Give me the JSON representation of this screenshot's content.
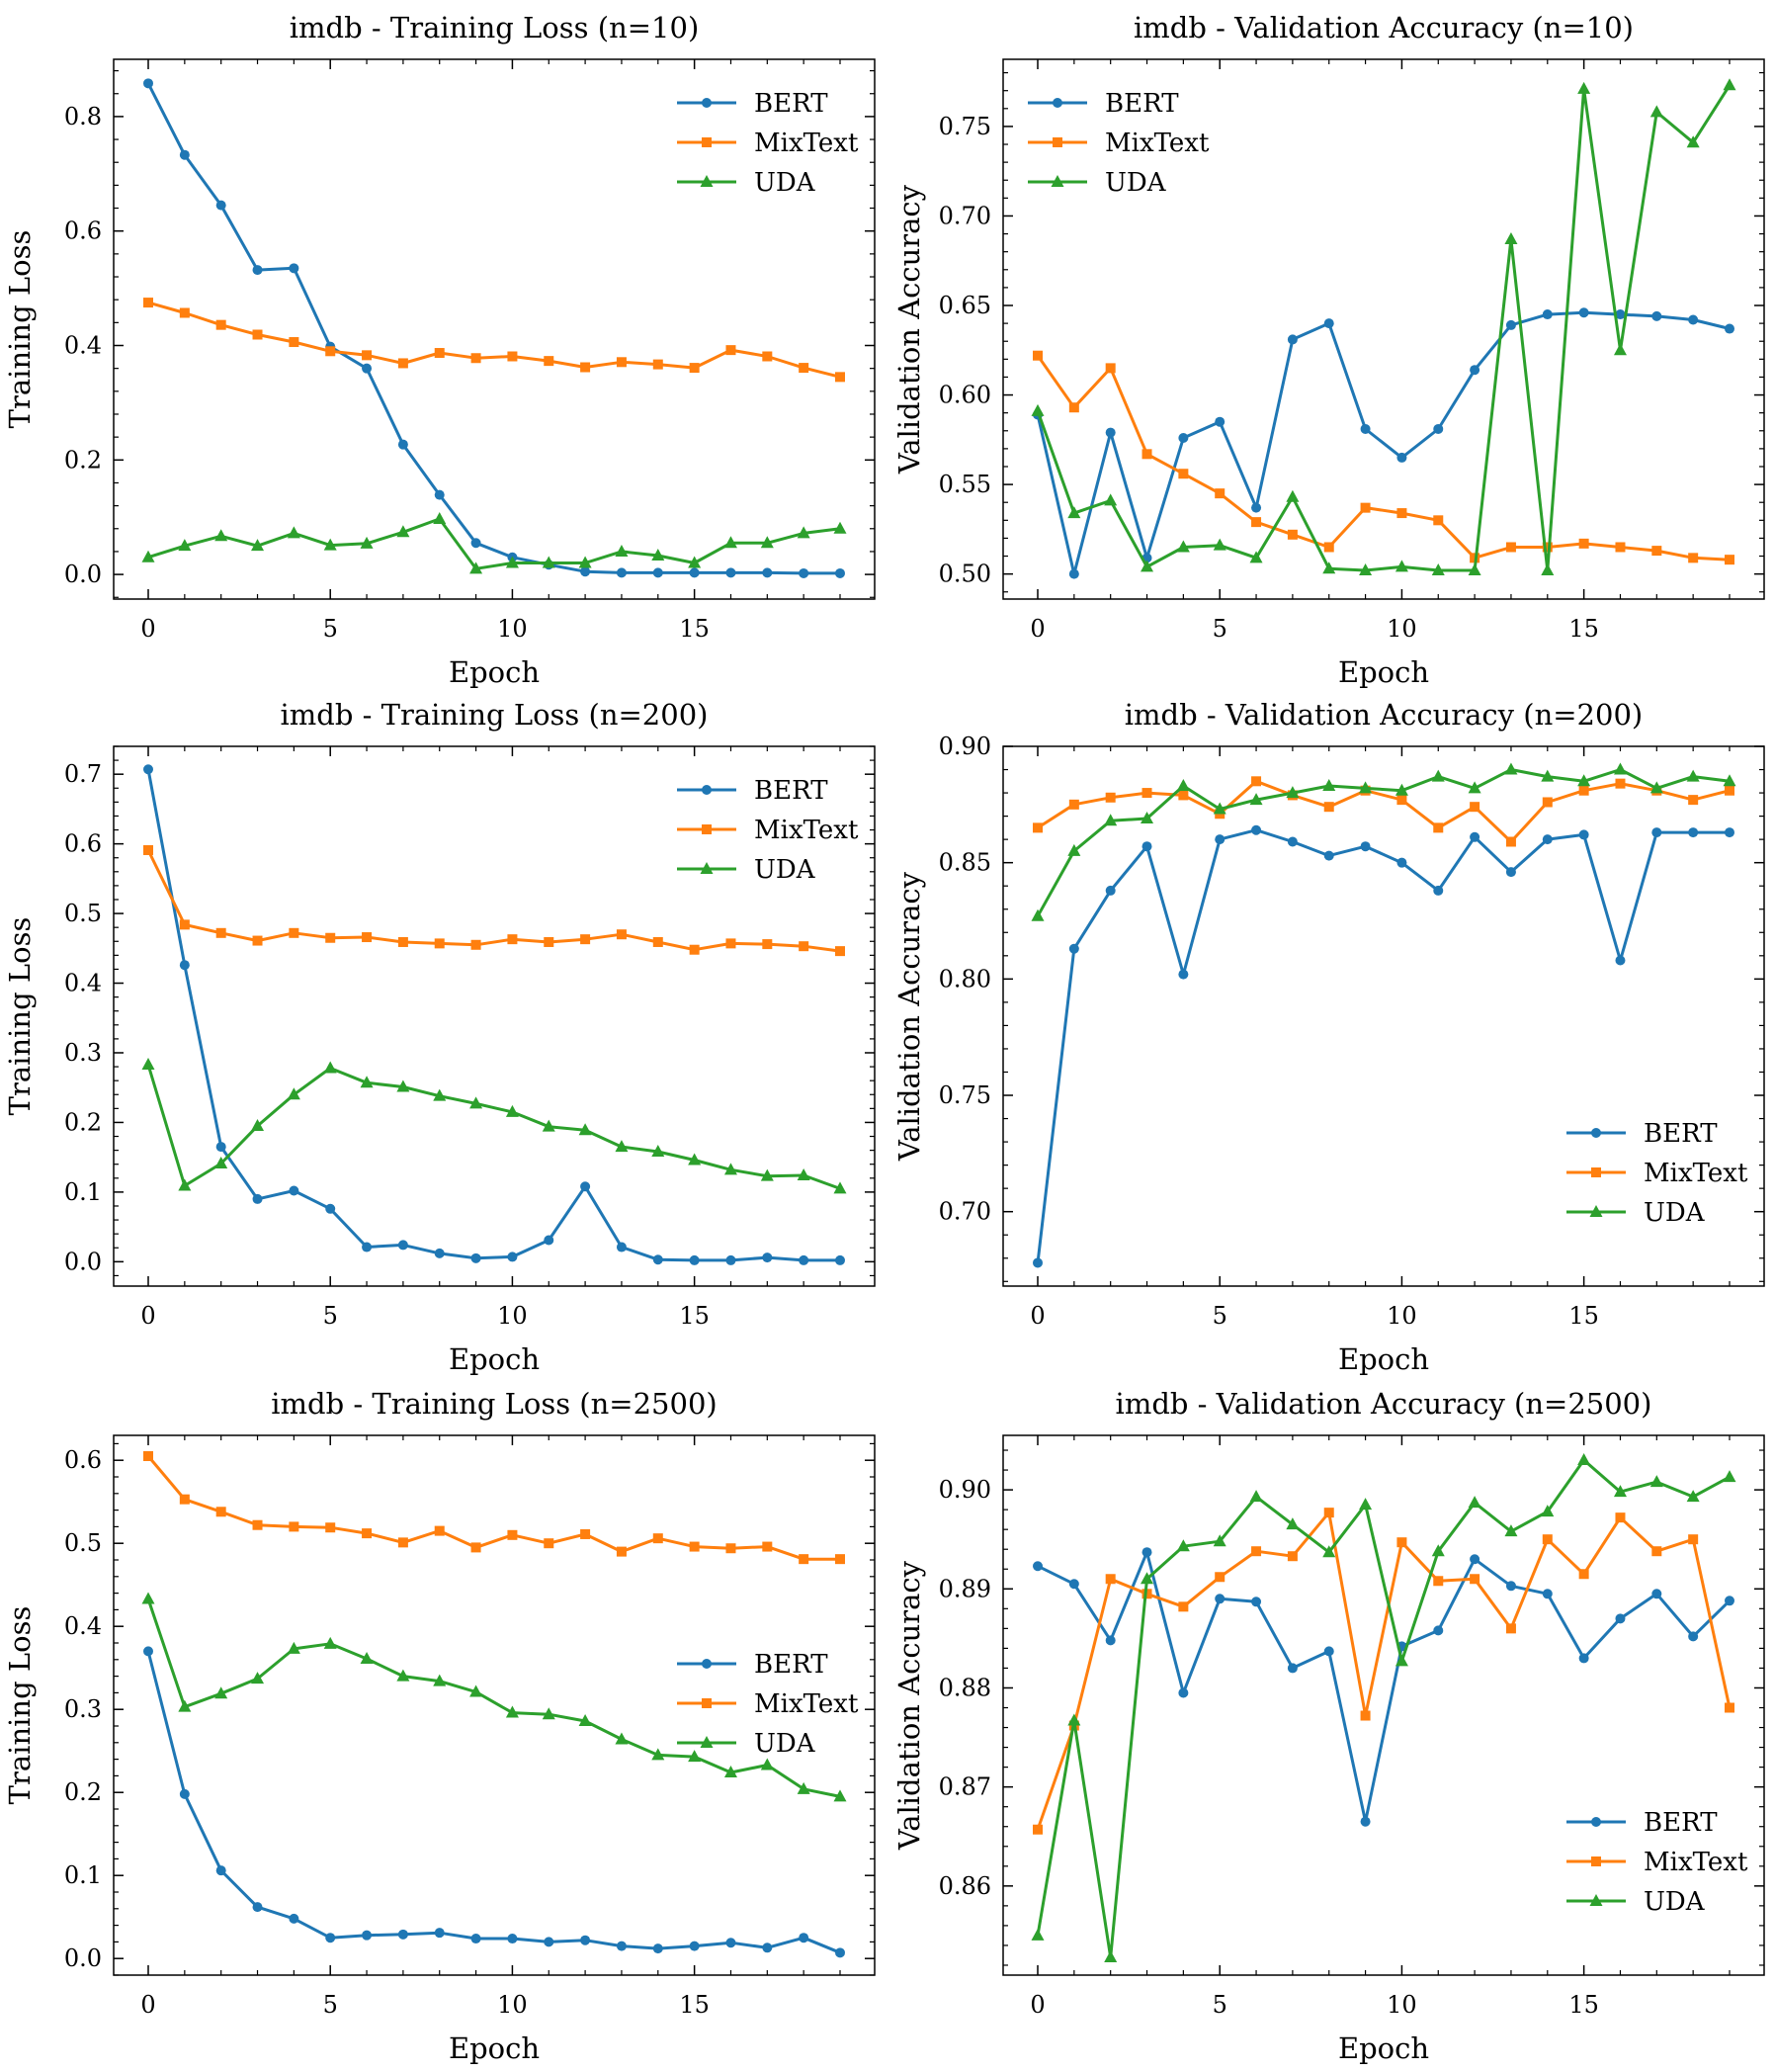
{
  "colors": {
    "BERT": "#1f77b4",
    "MixText": "#ff7f0e",
    "UDA": "#2ca02c"
  },
  "chart_data": [
    {
      "type": "line",
      "title": "imdb - Training Loss (n=10)",
      "xlabel": "Epoch",
      "ylabel": "Training Loss",
      "xlim": [
        -0.95,
        19.95
      ],
      "ylim": [
        -0.043,
        0.9
      ],
      "xticks": [
        0,
        5,
        10,
        15
      ],
      "yticks": [
        0.0,
        0.2,
        0.4,
        0.6,
        0.8
      ],
      "ytick_labels": [
        "0.0",
        "0.2",
        "0.4",
        "0.6",
        "0.8"
      ],
      "legend": "top-right",
      "x": [
        0,
        1,
        2,
        3,
        4,
        5,
        6,
        7,
        8,
        9,
        10,
        11,
        12,
        13,
        14,
        15,
        16,
        17,
        18,
        19
      ],
      "series": [
        {
          "name": "BERT",
          "marker": "circle",
          "values": [
            0.858,
            0.733,
            0.645,
            0.532,
            0.535,
            0.398,
            0.36,
            0.227,
            0.139,
            0.055,
            0.03,
            0.017,
            0.005,
            0.003,
            0.003,
            0.003,
            0.003,
            0.003,
            0.002,
            0.002
          ]
        },
        {
          "name": "MixText",
          "marker": "square",
          "values": [
            0.475,
            0.457,
            0.436,
            0.419,
            0.406,
            0.39,
            0.383,
            0.369,
            0.387,
            0.378,
            0.381,
            0.373,
            0.362,
            0.371,
            0.367,
            0.361,
            0.392,
            0.381,
            0.361,
            0.345
          ]
        },
        {
          "name": "UDA",
          "marker": "triangle",
          "values": [
            0.03,
            0.05,
            0.067,
            0.05,
            0.072,
            0.051,
            0.054,
            0.074,
            0.097,
            0.01,
            0.02,
            0.02,
            0.02,
            0.04,
            0.033,
            0.02,
            0.055,
            0.055,
            0.072,
            0.08
          ]
        }
      ]
    },
    {
      "type": "line",
      "title": "imdb - Validation Accuracy (n=10)",
      "xlabel": "Epoch",
      "ylabel": "Validation Accuracy",
      "xlim": [
        -0.95,
        19.95
      ],
      "ylim": [
        0.486,
        0.7875
      ],
      "xticks": [
        0,
        5,
        10,
        15
      ],
      "yticks": [
        0.5,
        0.55,
        0.6,
        0.65,
        0.7,
        0.75
      ],
      "ytick_labels": [
        "0.50",
        "0.55",
        "0.60",
        "0.65",
        "0.70",
        "0.75"
      ],
      "legend": "top-left",
      "x": [
        0,
        1,
        2,
        3,
        4,
        5,
        6,
        7,
        8,
        9,
        10,
        11,
        12,
        13,
        14,
        15,
        16,
        17,
        18,
        19
      ],
      "series": [
        {
          "name": "BERT",
          "marker": "circle",
          "values": [
            0.589,
            0.5,
            0.579,
            0.509,
            0.576,
            0.585,
            0.537,
            0.631,
            0.64,
            0.581,
            0.565,
            0.581,
            0.614,
            0.639,
            0.645,
            0.646,
            0.645,
            0.644,
            0.642,
            0.637
          ]
        },
        {
          "name": "MixText",
          "marker": "square",
          "values": [
            0.622,
            0.593,
            0.615,
            0.567,
            0.556,
            0.545,
            0.529,
            0.522,
            0.515,
            0.537,
            0.534,
            0.53,
            0.509,
            0.515,
            0.515,
            0.517,
            0.515,
            0.513,
            0.509,
            0.508
          ]
        },
        {
          "name": "UDA",
          "marker": "triangle",
          "values": [
            0.591,
            0.534,
            0.541,
            0.504,
            0.515,
            0.516,
            0.509,
            0.543,
            0.503,
            0.502,
            0.504,
            0.502,
            0.502,
            0.687,
            0.502,
            0.771,
            0.625,
            0.758,
            0.741,
            0.773
          ]
        }
      ]
    },
    {
      "type": "line",
      "title": "imdb - Training Loss (n=200)",
      "xlabel": "Epoch",
      "ylabel": "Training Loss",
      "xlim": [
        -0.95,
        19.95
      ],
      "ylim": [
        -0.035,
        0.74
      ],
      "xticks": [
        0,
        5,
        10,
        15
      ],
      "yticks": [
        0.0,
        0.1,
        0.2,
        0.3,
        0.4,
        0.5,
        0.6,
        0.7
      ],
      "ytick_labels": [
        "0.0",
        "0.1",
        "0.2",
        "0.3",
        "0.4",
        "0.5",
        "0.6",
        "0.7"
      ],
      "legend": "top-right",
      "x": [
        0,
        1,
        2,
        3,
        4,
        5,
        6,
        7,
        8,
        9,
        10,
        11,
        12,
        13,
        14,
        15,
        16,
        17,
        18,
        19
      ],
      "series": [
        {
          "name": "BERT",
          "marker": "circle",
          "values": [
            0.707,
            0.426,
            0.165,
            0.09,
            0.102,
            0.076,
            0.021,
            0.024,
            0.012,
            0.005,
            0.007,
            0.031,
            0.108,
            0.021,
            0.003,
            0.002,
            0.002,
            0.006,
            0.002,
            0.002
          ]
        },
        {
          "name": "MixText",
          "marker": "square",
          "values": [
            0.591,
            0.484,
            0.472,
            0.461,
            0.472,
            0.465,
            0.466,
            0.459,
            0.457,
            0.455,
            0.463,
            0.459,
            0.463,
            0.47,
            0.459,
            0.448,
            0.457,
            0.456,
            0.453,
            0.446
          ]
        },
        {
          "name": "UDA",
          "marker": "triangle",
          "values": [
            0.283,
            0.109,
            0.141,
            0.195,
            0.24,
            0.278,
            0.257,
            0.251,
            0.238,
            0.227,
            0.215,
            0.194,
            0.189,
            0.165,
            0.158,
            0.146,
            0.132,
            0.123,
            0.124,
            0.105
          ]
        }
      ]
    },
    {
      "type": "line",
      "title": "imdb - Validation Accuracy (n=200)",
      "xlabel": "Epoch",
      "ylabel": "Validation Accuracy",
      "xlim": [
        -0.95,
        19.95
      ],
      "ylim": [
        0.668,
        0.9
      ],
      "xticks": [
        0,
        5,
        10,
        15
      ],
      "yticks": [
        0.7,
        0.75,
        0.8,
        0.85,
        0.9
      ],
      "ytick_labels": [
        "0.70",
        "0.75",
        "0.80",
        "0.85",
        "0.90"
      ],
      "legend": "bottom-right",
      "x": [
        0,
        1,
        2,
        3,
        4,
        5,
        6,
        7,
        8,
        9,
        10,
        11,
        12,
        13,
        14,
        15,
        16,
        17,
        18,
        19
      ],
      "series": [
        {
          "name": "BERT",
          "marker": "circle",
          "values": [
            0.678,
            0.813,
            0.838,
            0.857,
            0.802,
            0.86,
            0.864,
            0.859,
            0.853,
            0.857,
            0.85,
            0.838,
            0.861,
            0.846,
            0.86,
            0.862,
            0.808,
            0.863,
            0.863,
            0.863
          ]
        },
        {
          "name": "MixText",
          "marker": "square",
          "values": [
            0.865,
            0.875,
            0.878,
            0.88,
            0.879,
            0.871,
            0.885,
            0.879,
            0.874,
            0.881,
            0.877,
            0.865,
            0.874,
            0.859,
            0.876,
            0.881,
            0.884,
            0.881,
            0.877,
            0.881
          ]
        },
        {
          "name": "UDA",
          "marker": "triangle",
          "values": [
            0.827,
            0.855,
            0.868,
            0.869,
            0.883,
            0.873,
            0.877,
            0.88,
            0.883,
            0.882,
            0.881,
            0.887,
            0.882,
            0.89,
            0.887,
            0.885,
            0.89,
            0.882,
            0.887,
            0.885
          ]
        }
      ]
    },
    {
      "type": "line",
      "title": "imdb - Training Loss (n=2500)",
      "xlabel": "Epoch",
      "ylabel": "Training Loss",
      "xlim": [
        -0.95,
        19.95
      ],
      "ylim": [
        -0.02,
        0.63
      ],
      "xticks": [
        0,
        5,
        10,
        15
      ],
      "yticks": [
        0.0,
        0.1,
        0.2,
        0.3,
        0.4,
        0.5,
        0.6
      ],
      "ytick_labels": [
        "0.0",
        "0.1",
        "0.2",
        "0.3",
        "0.4",
        "0.5",
        "0.6"
      ],
      "legend": "center-right",
      "x": [
        0,
        1,
        2,
        3,
        4,
        5,
        6,
        7,
        8,
        9,
        10,
        11,
        12,
        13,
        14,
        15,
        16,
        17,
        18,
        19
      ],
      "series": [
        {
          "name": "BERT",
          "marker": "circle",
          "values": [
            0.37,
            0.198,
            0.106,
            0.062,
            0.048,
            0.025,
            0.028,
            0.029,
            0.031,
            0.024,
            0.024,
            0.02,
            0.022,
            0.015,
            0.012,
            0.015,
            0.019,
            0.013,
            0.025,
            0.007
          ]
        },
        {
          "name": "MixText",
          "marker": "square",
          "values": [
            0.605,
            0.553,
            0.538,
            0.522,
            0.52,
            0.519,
            0.512,
            0.501,
            0.515,
            0.495,
            0.51,
            0.5,
            0.511,
            0.49,
            0.506,
            0.496,
            0.494,
            0.496,
            0.481,
            0.481
          ]
        },
        {
          "name": "UDA",
          "marker": "triangle",
          "values": [
            0.433,
            0.303,
            0.319,
            0.337,
            0.373,
            0.379,
            0.361,
            0.34,
            0.334,
            0.321,
            0.296,
            0.294,
            0.286,
            0.264,
            0.245,
            0.243,
            0.224,
            0.233,
            0.204,
            0.195
          ]
        }
      ]
    },
    {
      "type": "line",
      "title": "imdb - Validation Accuracy (n=2500)",
      "xlabel": "Epoch",
      "ylabel": "Validation Accuracy",
      "xlim": [
        -0.95,
        19.95
      ],
      "ylim": [
        0.851,
        0.9055
      ],
      "xticks": [
        0,
        5,
        10,
        15
      ],
      "yticks": [
        0.86,
        0.87,
        0.88,
        0.89,
        0.9
      ],
      "ytick_labels": [
        "0.86",
        "0.87",
        "0.88",
        "0.89",
        "0.90"
      ],
      "legend": "bottom-right",
      "x": [
        0,
        1,
        2,
        3,
        4,
        5,
        6,
        7,
        8,
        9,
        10,
        11,
        12,
        13,
        14,
        15,
        16,
        17,
        18,
        19
      ],
      "series": [
        {
          "name": "BERT",
          "marker": "circle",
          "values": [
            0.8923,
            0.8905,
            0.8848,
            0.8937,
            0.8795,
            0.889,
            0.8887,
            0.882,
            0.8837,
            0.8665,
            0.8842,
            0.8858,
            0.893,
            0.8903,
            0.8895,
            0.883,
            0.887,
            0.8895,
            0.8852,
            0.8888
          ]
        },
        {
          "name": "MixText",
          "marker": "square",
          "values": [
            0.8657,
            0.8762,
            0.891,
            0.8895,
            0.8882,
            0.8912,
            0.8938,
            0.8933,
            0.8977,
            0.8772,
            0.8947,
            0.8908,
            0.891,
            0.886,
            0.895,
            0.8915,
            0.8972,
            0.8938,
            0.895,
            0.878
          ]
        },
        {
          "name": "UDA",
          "marker": "triangle",
          "values": [
            0.855,
            0.8767,
            0.8528,
            0.891,
            0.8943,
            0.8948,
            0.8993,
            0.8965,
            0.8937,
            0.8985,
            0.8827,
            0.8938,
            0.8987,
            0.8958,
            0.8978,
            0.903,
            0.8998,
            0.9008,
            0.8993,
            0.9013
          ]
        }
      ]
    }
  ]
}
